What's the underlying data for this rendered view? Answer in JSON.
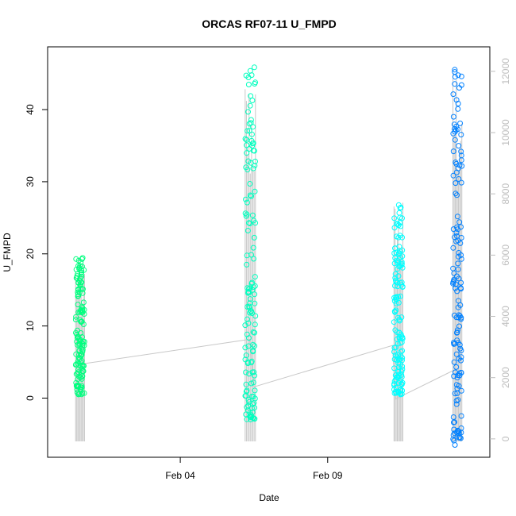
{
  "chart_data": {
    "type": "scatter",
    "title": "ORCAS RF07-11 U_FMPD",
    "xlabel": "Date",
    "ylabel": "U_FMPD",
    "x_ticks": [
      "Feb 04",
      "Feb 09"
    ],
    "x_tick_days": [
      4,
      9
    ],
    "xlim": [
      -0.5,
      14.5
    ],
    "ylim": [
      -8.2,
      48.7
    ],
    "y_ticks": [
      0,
      10,
      20,
      30,
      40
    ],
    "y2_ticks": [
      0,
      2000,
      4000,
      6000,
      8000,
      10000,
      12000
    ],
    "y2_lim": [
      -600,
      12800
    ],
    "colors": {
      "flight1": "#00ff7f",
      "flight2": "#00ffbf",
      "flight3": "#00ffff",
      "flight4": "#0080ff",
      "altitude_line": "#c8c8c8"
    },
    "series": [
      {
        "start_day": 0.45,
        "end_day": 0.75,
        "color": "#00ff7f",
        "y_min": 0.5,
        "y_max": 19.5
      },
      {
        "start_day": 6.2,
        "end_day": 6.55,
        "color": "#00ffbf",
        "y_min": -3.0,
        "y_max": 46.0
      },
      {
        "start_day": 11.25,
        "end_day": 11.55,
        "color": "#00ffff",
        "y_min": 0.5,
        "y_max": 28.0
      },
      {
        "start_day": 13.25,
        "end_day": 13.55,
        "color": "#0080ff",
        "y_min": -6.5,
        "y_max": 47.5
      }
    ],
    "secondary_series": {
      "name": "",
      "connecting_points": [
        {
          "x": 0.7,
          "y": 2450
        },
        {
          "x": 6.35,
          "y": 3250
        },
        {
          "x": 6.5,
          "y": 1700
        },
        {
          "x": 11.2,
          "y": 3050
        },
        {
          "x": 11.3,
          "y": 1300
        },
        {
          "x": 13.3,
          "y": 2250
        }
      ]
    }
  }
}
